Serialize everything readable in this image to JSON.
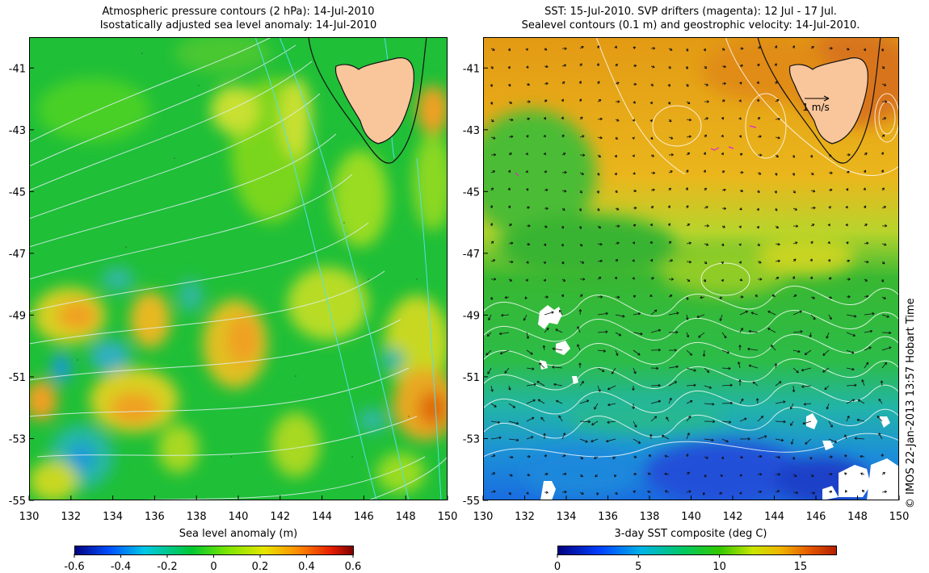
{
  "left": {
    "title1": "Atmospheric pressure contours (2 hPa): 14-Jul-2010",
    "title2": "Isostatically adjusted sea level anomaly: 14-Jul-2010",
    "colorbar_label": "Sea level anomaly (m)",
    "colorbar_ticks": [
      "-0.6",
      "-0.4",
      "-0.2",
      "0",
      "0.2",
      "0.4",
      "0.6"
    ]
  },
  "right": {
    "title1": "SST: 15-Jul-2010. SVP drifters (magenta): 12 Jul - 17 Jul.",
    "title2": "Sealevel contours (0.1 m) and geostrophic velocity: 14-Jul-2010.",
    "colorbar_label": "3-day SST composite (deg C)",
    "colorbar_ticks": [
      "0",
      "5",
      "10",
      "15"
    ],
    "velocity_scale_label": "1 m/s"
  },
  "axes": {
    "lat_labels": [
      "-41",
      "-43",
      "-45",
      "-47",
      "-49",
      "-51",
      "-53",
      "-55"
    ],
    "lon_labels": [
      "130",
      "132",
      "134",
      "136",
      "138",
      "140",
      "142",
      "144",
      "146",
      "148",
      "150"
    ],
    "lon_range": [
      130,
      150
    ],
    "lat_range": [
      -55,
      -40
    ]
  },
  "credit": "© IMOS 22-Jan-2013 13:57 Hobart Time",
  "colors": {
    "land": "#f9c59b",
    "sla_scale": [
      "#00007f",
      "#0050ff",
      "#00c8e6",
      "#00c832",
      "#7ee600",
      "#e6e600",
      "#ff8c00",
      "#e61e00",
      "#7f0000"
    ],
    "sst_scale": [
      "#00007f",
      "#0040ff",
      "#00b4e6",
      "#00c864",
      "#32c800",
      "#c8e600",
      "#f0b400",
      "#e65a00",
      "#b41e00"
    ]
  }
}
